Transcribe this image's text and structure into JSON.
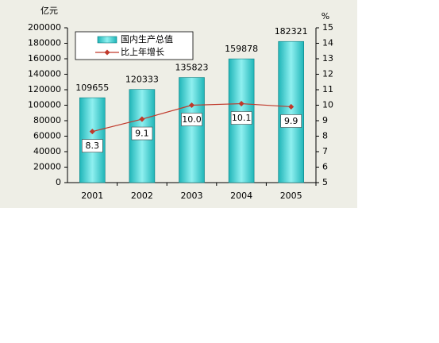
{
  "chart_data": {
    "type": "bar",
    "y_label": "亿元",
    "y2_label": "%",
    "categories": [
      "2001",
      "2002",
      "2003",
      "2004",
      "2005"
    ],
    "series": [
      {
        "name": "国内生产总值",
        "color": "#1fb5b8",
        "values": [
          109655,
          120333,
          135823,
          159878,
          182321
        ]
      },
      {
        "name": "比上年增长",
        "color": "#c0392b",
        "type": "line",
        "axis": "y2",
        "values": [
          8.3,
          9.1,
          10.0,
          10.1,
          9.9
        ],
        "value_labels": [
          "8.3",
          "9.1",
          "10.0",
          "10.1",
          "9.9"
        ]
      }
    ],
    "ylim": [
      0,
      200000
    ],
    "yticks": [
      0,
      20000,
      40000,
      60000,
      80000,
      100000,
      120000,
      140000,
      160000,
      180000,
      200000
    ],
    "y2lim": [
      5,
      15
    ],
    "y2ticks": [
      5,
      6,
      7,
      8,
      9,
      10,
      11,
      12,
      13,
      14,
      15
    ],
    "grid": false
  }
}
